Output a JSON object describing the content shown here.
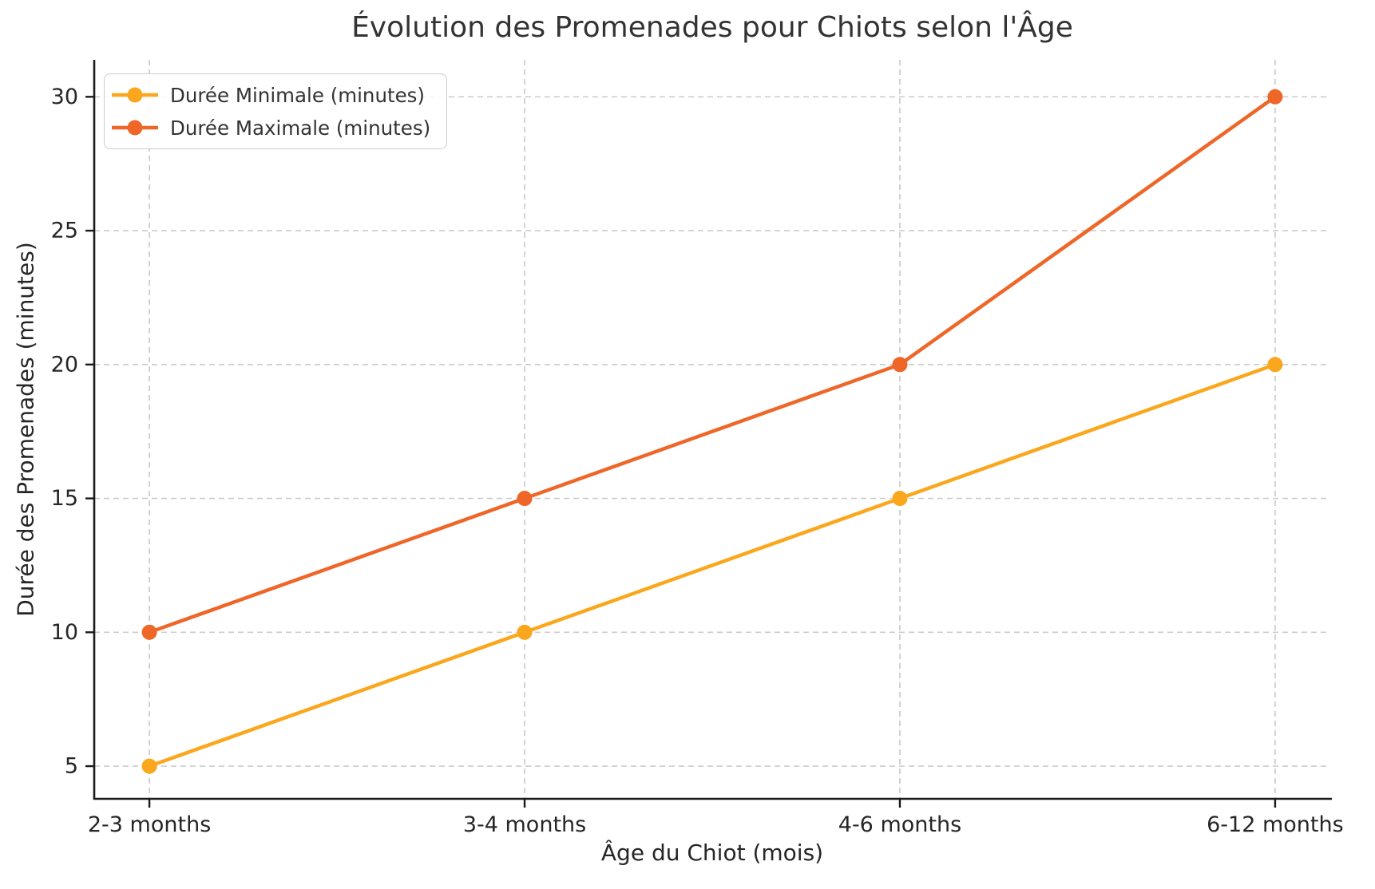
{
  "chart_data": {
    "type": "line",
    "title": "Évolution des Promenades pour Chiots selon l'Âge",
    "xlabel": "Âge du Chiot (mois)",
    "ylabel": "Durée des Promenades (minutes)",
    "categories": [
      "2-3 months",
      "3-4 months",
      "4-6 months",
      "6-12 months"
    ],
    "series": [
      {
        "name": "Durée Minimale (minutes)",
        "values": [
          5,
          10,
          15,
          20
        ],
        "color": "#FBA71D",
        "marker": "circle"
      },
      {
        "name": "Durée Maximale (minutes)",
        "values": [
          10,
          15,
          20,
          30
        ],
        "color": "#EE6628",
        "marker": "circle"
      }
    ],
    "yticks": [
      5,
      10,
      15,
      20,
      25,
      30
    ],
    "ylim": [
      3.78,
      31.38
    ],
    "xlim": [
      -0.147,
      3.147
    ],
    "grid": true,
    "grid_style": "dashed",
    "legend_position": "upper left"
  },
  "style_colors": {
    "grid": "#cccccc",
    "spine": "#1a1a1a",
    "tick_text": "#262626",
    "title_text": "#333333"
  }
}
